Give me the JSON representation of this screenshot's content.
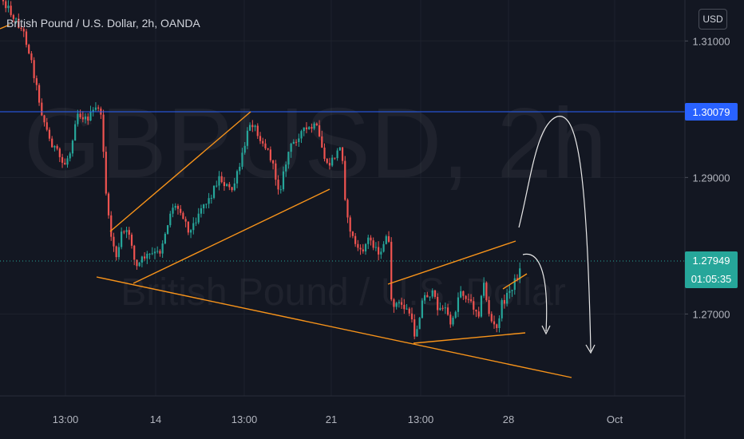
{
  "header": {
    "title": "British Pound / U.S. Dollar, 2h, OANDA",
    "currency": "USD"
  },
  "watermark": {
    "symbol": "GBPUSD, 2h",
    "description": "British Pound / U.S. Dollar"
  },
  "colors": {
    "background": "#131722",
    "up": "#26a69a",
    "down": "#ef5350",
    "drawing": "#f7931a",
    "resistance": "#2962ff",
    "price_tag": "#26a69a",
    "text": "#b2b5be",
    "grid": "#1e222d"
  },
  "price_axis": {
    "tick_labels": [
      "1.31000",
      "1.29000",
      "1.27000"
    ],
    "resistance_label": "1.30079",
    "current_price": "1.27949",
    "countdown": "01:05:35"
  },
  "time_axis": {
    "tick_labels": [
      "13:00",
      "14",
      "13:00",
      "21",
      "13:00",
      "28",
      "Oct"
    ]
  },
  "chart_data": {
    "type": "candlestick",
    "symbol": "GBPUSD",
    "interval": "2h",
    "ylim": [
      1.258,
      1.316
    ],
    "resistance_level": 1.30079,
    "last_price": 1.27949,
    "candle_count": 202
  }
}
